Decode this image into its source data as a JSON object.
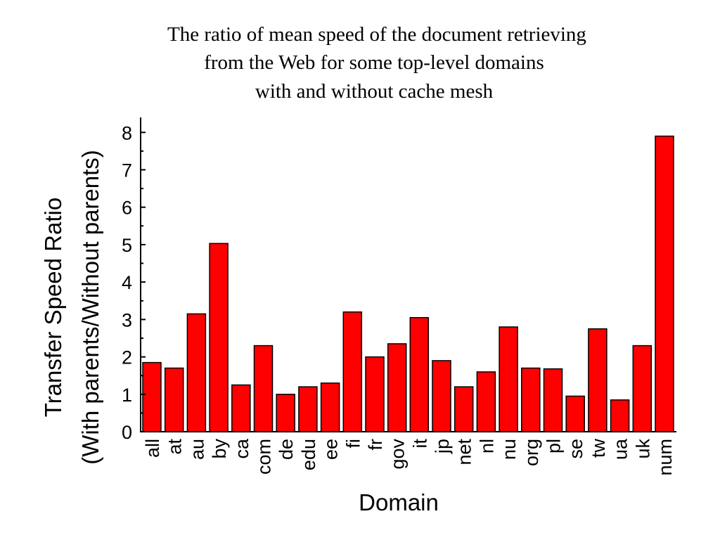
{
  "chart_data": {
    "type": "bar",
    "title": [
      "The ratio of mean speed of the document retrieving",
      "from the Web for some top-level domains",
      "with and without cache mesh"
    ],
    "xlabel": "Domain",
    "ylabel": [
      "Transfer Speed Ratio",
      "(With parents/Without parents)"
    ],
    "categories": [
      "all",
      "at",
      "au",
      "by",
      "ca",
      "com",
      "de",
      "edu",
      "ee",
      "fi",
      "fr",
      "gov",
      "it",
      "jp",
      "net",
      "nl",
      "nu",
      "org",
      "pl",
      "se",
      "tw",
      "ua",
      "uk",
      "num"
    ],
    "values": [
      1.85,
      1.7,
      3.15,
      5.03,
      1.25,
      2.3,
      1.0,
      1.2,
      1.3,
      3.2,
      2.0,
      2.35,
      3.05,
      1.9,
      1.2,
      1.6,
      2.8,
      1.7,
      1.68,
      0.95,
      2.75,
      0.85,
      2.3,
      7.9
    ],
    "ylim": [
      0,
      8.4
    ],
    "yticks": [
      "0",
      "1",
      "2",
      "3",
      "4",
      "5",
      "6",
      "7",
      "8"
    ],
    "grid": false,
    "bar_color": "#ff0000"
  }
}
